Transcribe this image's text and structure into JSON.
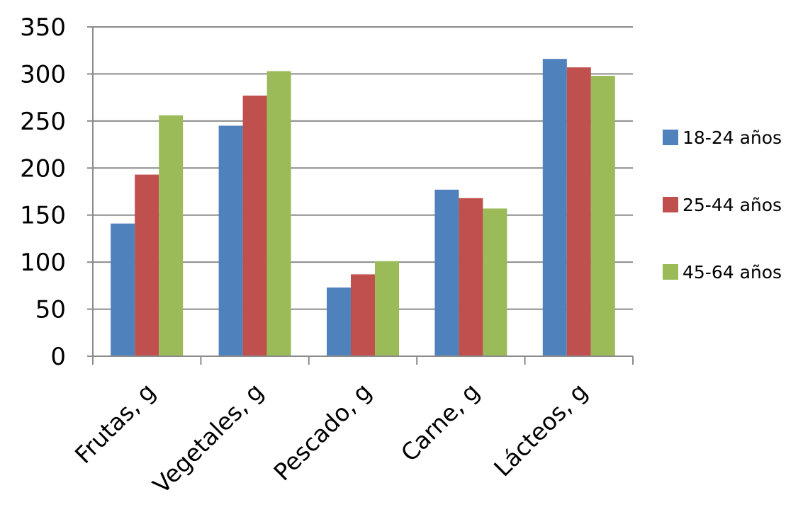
{
  "chart_data": {
    "type": "bar",
    "categories": [
      "Frutas, g",
      "Vegetales, g",
      "Pescado, g",
      "Carne, g",
      "Lácteos, g"
    ],
    "series": [
      {
        "name": "18-24 años",
        "color": "#4F81BD",
        "values": [
          141,
          245,
          73,
          177,
          316
        ]
      },
      {
        "name": "25-44 años",
        "color": "#C0504D",
        "values": [
          193,
          277,
          87,
          168,
          307
        ]
      },
      {
        "name": "45-64 años",
        "color": "#9BBB59",
        "values": [
          256,
          303,
          101,
          157,
          298
        ]
      }
    ],
    "ylim": [
      0,
      350
    ],
    "yticks": [
      "0",
      "50",
      "100",
      "150",
      "200",
      "250",
      "300",
      "350"
    ],
    "grid": true,
    "legend_position": "right",
    "title": "",
    "xlabel": "",
    "ylabel": ""
  }
}
